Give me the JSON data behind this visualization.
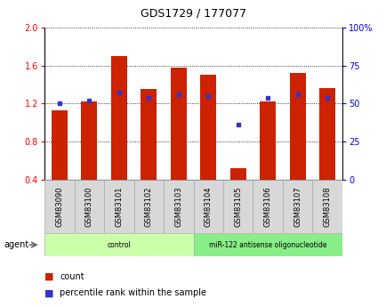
{
  "title": "GDS1729 / 177077",
  "samples": [
    "GSM83090",
    "GSM83100",
    "GSM83101",
    "GSM83102",
    "GSM83103",
    "GSM83104",
    "GSM83105",
    "GSM83106",
    "GSM83107",
    "GSM83108"
  ],
  "red_values": [
    1.13,
    1.22,
    1.7,
    1.35,
    1.58,
    1.5,
    0.52,
    1.22,
    1.52,
    1.36
  ],
  "blue_pct": [
    50,
    52,
    57,
    54,
    56,
    55,
    36,
    54,
    56,
    54
  ],
  "ylim_left": [
    0.4,
    2.0
  ],
  "ylim_right": [
    0,
    100
  ],
  "yticks_left": [
    0.4,
    0.8,
    1.2,
    1.6,
    2.0
  ],
  "yticks_right": [
    0,
    25,
    50,
    75,
    100
  ],
  "ytick_labels_right": [
    "0",
    "25",
    "50",
    "75",
    "100%"
  ],
  "bar_color": "#cc2200",
  "blue_color": "#3333cc",
  "bar_width": 0.55,
  "groups": [
    {
      "label": "control",
      "start": 0,
      "end": 5,
      "color": "#ccffaa"
    },
    {
      "label": "miR-122 antisense oligonucleotide",
      "start": 5,
      "end": 10,
      "color": "#88ee88"
    }
  ],
  "legend_items": [
    {
      "label": "count",
      "color": "#cc2200"
    },
    {
      "label": "percentile rank within the sample",
      "color": "#3333cc"
    }
  ],
  "agent_label": "agent",
  "sample_box_color": "#d8d8d8",
  "title_fontsize": 9,
  "tick_fontsize": 7,
  "label_fontsize": 6,
  "legend_fontsize": 7
}
